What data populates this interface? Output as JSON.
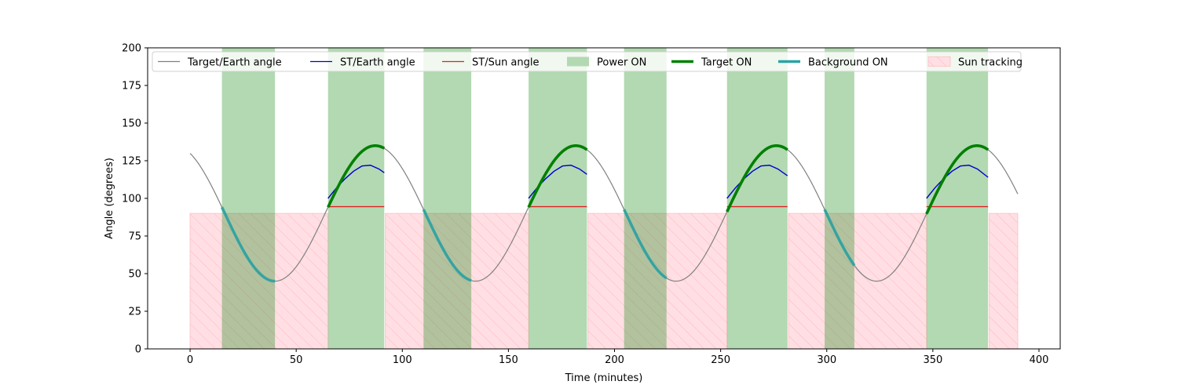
{
  "chart_data": {
    "type": "line",
    "title": "",
    "xlabel": "Time (minutes)",
    "ylabel": "Angle (degrees)",
    "xlim": [
      -20,
      410
    ],
    "ylim": [
      0,
      200
    ],
    "xticks": [
      0,
      50,
      100,
      150,
      200,
      250,
      300,
      350,
      400
    ],
    "yticks": [
      0,
      25,
      50,
      75,
      100,
      125,
      150,
      175,
      200
    ],
    "grid": false,
    "legend_position": "top",
    "legend": [
      {
        "key": "target_earth",
        "label": "Target/Earth angle",
        "kind": "line",
        "color": "#808080"
      },
      {
        "key": "st_earth",
        "label": "ST/Earth angle",
        "kind": "line",
        "color": "#0000cc"
      },
      {
        "key": "st_sun",
        "label": "ST/Sun angle",
        "kind": "line",
        "color": "#dd2222"
      },
      {
        "key": "power_on",
        "label": "Power ON",
        "kind": "patch",
        "color": "#b3d9b3"
      },
      {
        "key": "target_on",
        "label": "Target ON",
        "kind": "thick-line",
        "color": "#008000"
      },
      {
        "key": "background_on",
        "label": "Background ON",
        "kind": "thick-line",
        "color": "#2ba3a3"
      },
      {
        "key": "sun_tracking",
        "label": "Sun tracking",
        "kind": "hatch",
        "color": "#ffdfe3"
      }
    ],
    "orbit": {
      "period_min": 94.5,
      "target_earth_mean": 90,
      "target_earth_amplitude": 45,
      "target_earth_min_time": 40,
      "x_end": 390
    },
    "power_on_intervals": [
      [
        15,
        40
      ],
      [
        65,
        91.5
      ],
      [
        110,
        132.5
      ],
      [
        159.5,
        187
      ],
      [
        204.5,
        224.5
      ],
      [
        253,
        281.5
      ],
      [
        299,
        313
      ],
      [
        347,
        376
      ]
    ],
    "sun_tracking_intervals": [
      [
        0,
        65
      ],
      [
        92,
        159.5
      ],
      [
        187.5,
        253
      ],
      [
        282,
        347
      ],
      [
        376.5,
        390
      ]
    ],
    "sun_tracking_level": 90,
    "background_on_intervals": [
      [
        15,
        40
      ],
      [
        110,
        132.5
      ],
      [
        204.5,
        224.5
      ],
      [
        299,
        313
      ]
    ],
    "target_on_intervals": [
      [
        65,
        91.5
      ],
      [
        159.5,
        187
      ],
      [
        253,
        281.5
      ],
      [
        347,
        376
      ]
    ],
    "st_earth_segments": [
      {
        "x": [
          65,
          69,
          73,
          77,
          81,
          85,
          89,
          91.5
        ],
        "y": [
          100,
          107,
          113,
          118,
          121.5,
          122,
          119.5,
          117
        ]
      },
      {
        "x": [
          159.5,
          163.5,
          167.5,
          171.5,
          175.5,
          179.5,
          183.5,
          187
        ],
        "y": [
          100,
          107,
          113,
          118,
          121.5,
          122,
          119.5,
          116
        ]
      },
      {
        "x": [
          253,
          257,
          261,
          265,
          269,
          273,
          277,
          281.5
        ],
        "y": [
          100,
          107,
          113,
          118,
          121.5,
          122,
          119.5,
          115
        ]
      },
      {
        "x": [
          347,
          351,
          355,
          359,
          363,
          367,
          371,
          376
        ],
        "y": [
          100,
          107,
          113,
          118,
          121.5,
          122,
          119.5,
          114
        ]
      }
    ],
    "st_sun_segments": [
      {
        "x": [
          65,
          91.5
        ],
        "y": [
          94.5,
          94.5
        ]
      },
      {
        "x": [
          159.5,
          187
        ],
        "y": [
          94.5,
          94.5
        ]
      },
      {
        "x": [
          253,
          281.5
        ],
        "y": [
          94.5,
          94.5
        ]
      },
      {
        "x": [
          347,
          376
        ],
        "y": [
          94.5,
          94.5
        ]
      }
    ]
  }
}
